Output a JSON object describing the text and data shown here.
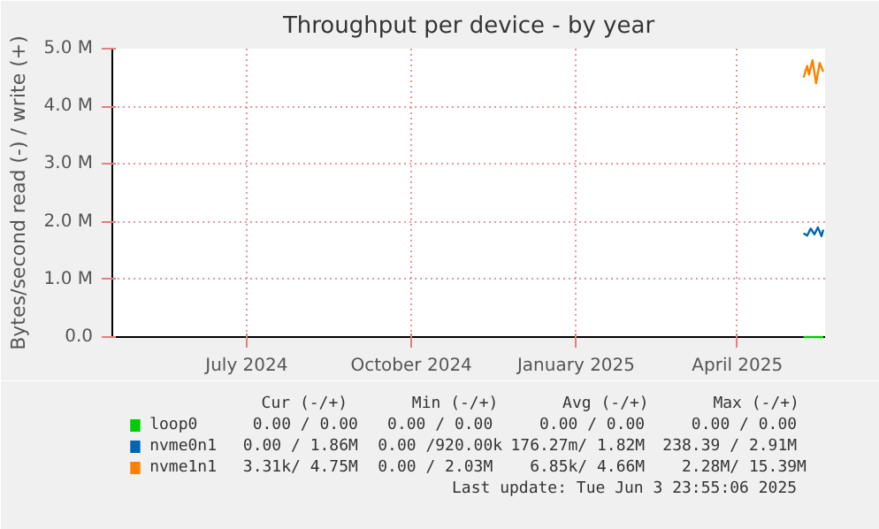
{
  "chart_data": {
    "type": "line",
    "title": "Throughput per device - by year",
    "ylabel": "Bytes/second read (-) / write (+)",
    "xlim": [
      "2024-05-02",
      "2025-06-04"
    ],
    "xticks": [
      {
        "value": "2024-07-16",
        "label": "July 2024"
      },
      {
        "value": "2024-10-16",
        "label": "October 2024"
      },
      {
        "value": "2025-01-16",
        "label": "January 2025"
      },
      {
        "value": "2025-04-16",
        "label": "April 2025"
      }
    ],
    "ylim": [
      0,
      5000000
    ],
    "yticks": [
      {
        "value": 0,
        "label": "0.0"
      },
      {
        "value": 1000000,
        "label": "1.0 M"
      },
      {
        "value": 2000000,
        "label": "2.0 M"
      },
      {
        "value": 3000000,
        "label": "3.0 M"
      },
      {
        "value": 4000000,
        "label": "4.0 M"
      },
      {
        "value": 5000000,
        "label": "5.0 M"
      }
    ],
    "grid": true,
    "legend": "bottom left",
    "series": [
      {
        "name": "loop0",
        "color": "#00cc00",
        "x": [
          "2025-05-23",
          "2025-06-03"
        ],
        "values": [
          0,
          0
        ]
      },
      {
        "name": "nvme0n1",
        "color": "#0066b3",
        "x": [
          "2025-05-23",
          "2025-05-25",
          "2025-05-27",
          "2025-05-29",
          "2025-05-31",
          "2025-06-02",
          "2025-06-03"
        ],
        "values": [
          1800000,
          1760000,
          1880000,
          1780000,
          1900000,
          1750000,
          1860000
        ]
      },
      {
        "name": "nvme1n1",
        "color": "#ff8000",
        "x": [
          "2025-05-23",
          "2025-05-25",
          "2025-05-26",
          "2025-05-28",
          "2025-05-30",
          "2025-06-01",
          "2025-06-03"
        ],
        "values": [
          4500000,
          4700000,
          4550000,
          4800000,
          4400000,
          4750000,
          4600000
        ]
      }
    ],
    "annotations": [
      "Cur (-/+)",
      "Min (-/+)",
      "Avg (-/+)",
      "Max (-/+)",
      "0.00 /  0.00",
      "0.00 /  0.00",
      "0.00 /  0.00",
      "0.00 /  0.00",
      "0.00 /  1.86M",
      "0.00 /920.00k",
      "176.27m/  1.82M",
      "238.39 /  2.91M",
      "3.31k/  4.75M",
      "0.00 /  2.03M",
      "6.85k/  4.66M",
      "2.28M/ 15.39M",
      "Last update: Tue Jun  3 23:55:06 2025"
    ]
  }
}
